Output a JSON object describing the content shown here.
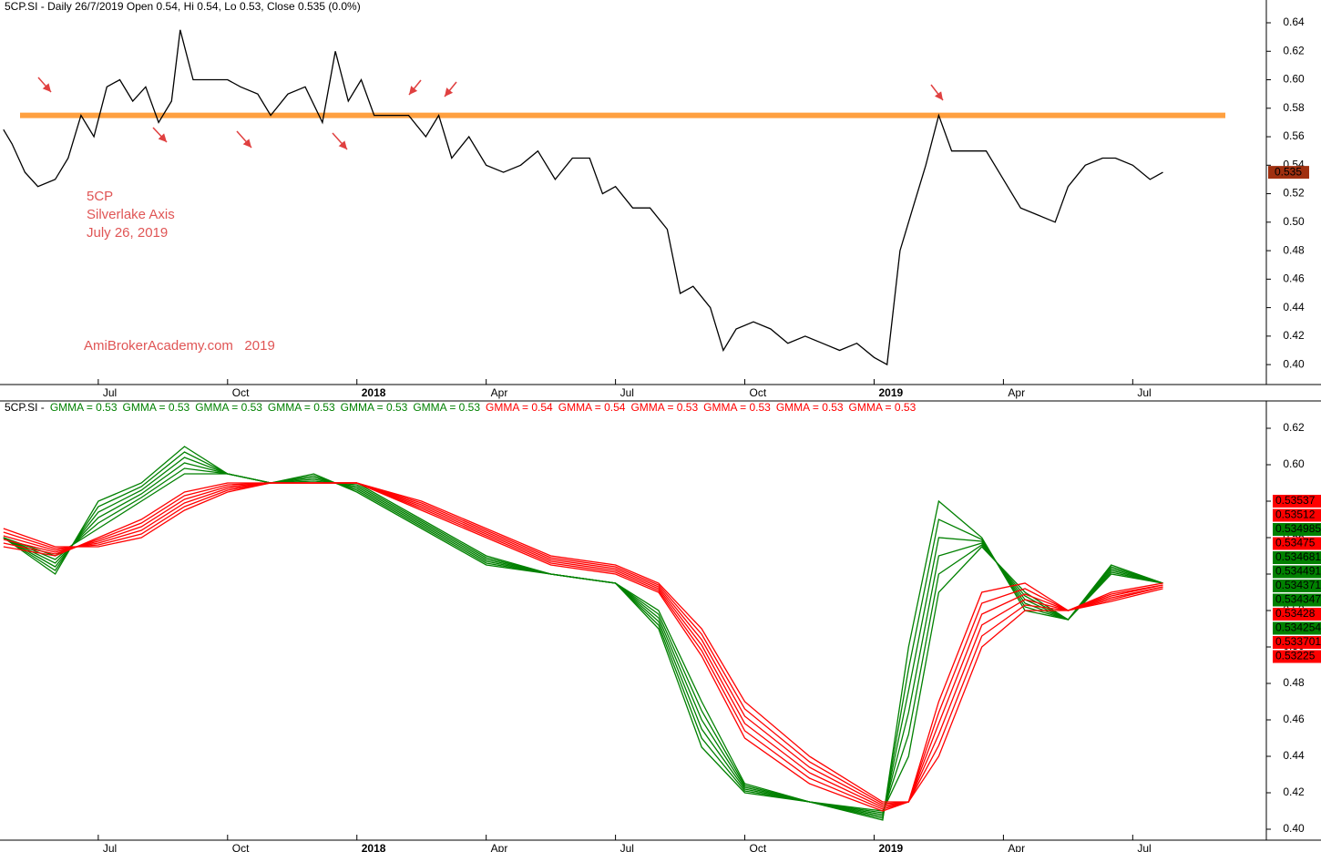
{
  "chart_data": [
    {
      "type": "line",
      "title": "5CP.SI - Daily 26/7/2019 Open 0.54, Hi 0.54, Lo 0.53, Close 0.535 (0.0%)",
      "annotations": [
        "5CP",
        "Silverlake Axis",
        "July 26, 2019",
        "AmiBrokerAcademy.com   2019"
      ],
      "x": [
        3.8,
        4.0,
        4.3,
        4.6,
        5.0,
        5.3,
        5.6,
        5.9,
        6.2,
        6.5,
        6.8,
        7.1,
        7.4,
        7.7,
        7.9,
        8.2,
        8.6,
        9.0,
        9.3,
        9.7,
        10.0,
        10.4,
        10.8,
        11.2,
        11.5,
        11.8,
        12.1,
        12.4,
        12.8,
        13.2,
        13.6,
        13.9,
        14.2,
        14.6,
        15.0,
        15.4,
        15.8,
        16.2,
        16.6,
        17.0,
        17.4,
        17.7,
        18.0,
        18.4,
        18.8,
        19.2,
        19.5,
        19.8,
        20.2,
        20.5,
        20.8,
        21.2,
        21.6,
        22.0,
        22.4,
        22.8,
        23.2,
        23.6,
        24.0,
        24.3,
        24.6,
        24.9,
        25.2,
        25.5,
        25.8,
        26.2,
        26.6,
        27.0,
        27.4,
        27.8,
        28.2,
        28.5,
        28.9,
        29.3,
        29.6,
        30.0,
        30.4,
        30.7
      ],
      "values": [
        0.565,
        0.555,
        0.535,
        0.525,
        0.53,
        0.545,
        0.575,
        0.56,
        0.595,
        0.6,
        0.585,
        0.595,
        0.57,
        0.585,
        0.635,
        0.6,
        0.6,
        0.6,
        0.595,
        0.59,
        0.575,
        0.59,
        0.595,
        0.57,
        0.62,
        0.585,
        0.6,
        0.575,
        0.575,
        0.575,
        0.56,
        0.575,
        0.545,
        0.56,
        0.54,
        0.535,
        0.54,
        0.55,
        0.53,
        0.545,
        0.545,
        0.52,
        0.525,
        0.51,
        0.51,
        0.495,
        0.45,
        0.455,
        0.44,
        0.41,
        0.425,
        0.43,
        0.425,
        0.415,
        0.42,
        0.415,
        0.41,
        0.415,
        0.405,
        0.4,
        0.48,
        0.51,
        0.54,
        0.575,
        0.55,
        0.55,
        0.55,
        0.53,
        0.51,
        0.505,
        0.5,
        0.525,
        0.54,
        0.545,
        0.545,
        0.54,
        0.53,
        0.535
      ],
      "color": "#000000",
      "resistance": {
        "value": 0.575,
        "color": "#ffa040"
      },
      "last_label": "0.535",
      "last_label_color": "#a03010",
      "xlim": [
        3.72,
        33.1
      ],
      "xticks": [
        {
          "value": 6,
          "label": "Jul"
        },
        {
          "value": 9,
          "label": "Oct"
        },
        {
          "value": 12,
          "label": "2018"
        },
        {
          "value": 15,
          "label": "Apr"
        },
        {
          "value": 18,
          "label": "Jul"
        },
        {
          "value": 21,
          "label": "Oct"
        },
        {
          "value": 24,
          "label": "2019"
        },
        {
          "value": 27,
          "label": "Apr"
        },
        {
          "value": 30,
          "label": "Jul"
        }
      ],
      "ylim": [
        0.386,
        0.656
      ],
      "yticks": [
        {
          "value": 0.4,
          "label": "0.40"
        },
        0.42,
        0.44,
        0.46,
        0.48,
        {
          "value": 0.5,
          "label": "0.50"
        },
        0.52,
        0.54,
        0.56,
        0.58,
        {
          "value": 0.6,
          "label": "0.60"
        },
        0.62,
        0.64
      ]
    },
    {
      "type": "line",
      "title": "5CP.SI -",
      "x": [
        3.8,
        5,
        6,
        7,
        8,
        9,
        10,
        11,
        12,
        13.5,
        15,
        16.5,
        18,
        19,
        20,
        21,
        22.5,
        24.2,
        24.8,
        25.5,
        26.5,
        27.5,
        28.5,
        29.5,
        30.7
      ],
      "series": [
        {
          "name": "GMMA = 0.53",
          "color": "#008000",
          "values": [
            0.56,
            0.54,
            0.58,
            0.59,
            0.61,
            0.595,
            0.59,
            0.595,
            0.585,
            0.565,
            0.545,
            0.54,
            0.535,
            0.51,
            0.445,
            0.42,
            0.415,
            0.405,
            0.5,
            0.58,
            0.56,
            0.52,
            0.515,
            0.545,
            0.535
          ]
        },
        {
          "name": "GMMA = 0.53",
          "color": "#008000",
          "values": [
            0.56,
            0.542,
            0.577,
            0.588,
            0.607,
            0.595,
            0.59,
            0.594,
            0.586,
            0.566,
            0.546,
            0.54,
            0.535,
            0.512,
            0.45,
            0.421,
            0.415,
            0.406,
            0.488,
            0.57,
            0.559,
            0.522,
            0.515,
            0.544,
            0.535
          ]
        },
        {
          "name": "GMMA = 0.53",
          "color": "#008000",
          "values": [
            0.56,
            0.544,
            0.574,
            0.586,
            0.604,
            0.595,
            0.59,
            0.593,
            0.587,
            0.567,
            0.547,
            0.54,
            0.535,
            0.514,
            0.455,
            0.422,
            0.415,
            0.407,
            0.476,
            0.56,
            0.558,
            0.524,
            0.515,
            0.543,
            0.535
          ]
        },
        {
          "name": "GMMA = 0.53",
          "color": "#008000",
          "values": [
            0.56,
            0.546,
            0.571,
            0.584,
            0.601,
            0.595,
            0.59,
            0.592,
            0.588,
            0.568,
            0.548,
            0.54,
            0.535,
            0.516,
            0.46,
            0.423,
            0.415,
            0.408,
            0.464,
            0.55,
            0.557,
            0.526,
            0.515,
            0.542,
            0.535
          ]
        },
        {
          "name": "GMMA = 0.53",
          "color": "#008000",
          "values": [
            0.56,
            0.548,
            0.568,
            0.582,
            0.598,
            0.595,
            0.59,
            0.591,
            0.589,
            0.569,
            0.549,
            0.54,
            0.535,
            0.518,
            0.465,
            0.424,
            0.415,
            0.409,
            0.452,
            0.54,
            0.556,
            0.528,
            0.515,
            0.541,
            0.535
          ]
        },
        {
          "name": "GMMA = 0.53",
          "color": "#008000",
          "values": [
            0.56,
            0.55,
            0.565,
            0.58,
            0.595,
            0.595,
            0.59,
            0.59,
            0.59,
            0.57,
            0.55,
            0.54,
            0.535,
            0.52,
            0.47,
            0.425,
            0.415,
            0.41,
            0.44,
            0.53,
            0.555,
            0.53,
            0.515,
            0.54,
            0.535
          ]
        },
        {
          "name": "GMMA = 0.54",
          "color": "#ff0000",
          "values": [
            0.555,
            0.55,
            0.56,
            0.57,
            0.585,
            0.59,
            0.59,
            0.59,
            0.59,
            0.575,
            0.56,
            0.545,
            0.54,
            0.53,
            0.495,
            0.45,
            0.425,
            0.41,
            0.415,
            0.47,
            0.53,
            0.535,
            0.52,
            0.53,
            0.535
          ]
        },
        {
          "name": "GMMA = 0.54",
          "color": "#ff0000",
          "values": [
            0.557,
            0.551,
            0.559,
            0.568,
            0.583,
            0.589,
            0.59,
            0.59,
            0.59,
            0.576,
            0.561,
            0.546,
            0.541,
            0.531,
            0.498,
            0.454,
            0.428,
            0.411,
            0.415,
            0.464,
            0.524,
            0.532,
            0.52,
            0.529,
            0.534
          ]
        },
        {
          "name": "GMMA = 0.53",
          "color": "#ff0000",
          "values": [
            0.559,
            0.552,
            0.558,
            0.566,
            0.581,
            0.588,
            0.59,
            0.59,
            0.59,
            0.577,
            0.562,
            0.547,
            0.542,
            0.532,
            0.501,
            0.458,
            0.431,
            0.412,
            0.415,
            0.458,
            0.518,
            0.529,
            0.52,
            0.528,
            0.534
          ]
        },
        {
          "name": "GMMA = 0.53",
          "color": "#ff0000",
          "values": [
            0.561,
            0.553,
            0.557,
            0.564,
            0.579,
            0.587,
            0.59,
            0.59,
            0.59,
            0.578,
            0.563,
            0.548,
            0.543,
            0.533,
            0.504,
            0.462,
            0.434,
            0.413,
            0.415,
            0.452,
            0.512,
            0.526,
            0.52,
            0.527,
            0.533
          ]
        },
        {
          "name": "GMMA = 0.53",
          "color": "#ff0000",
          "values": [
            0.563,
            0.554,
            0.556,
            0.562,
            0.577,
            0.586,
            0.59,
            0.59,
            0.59,
            0.579,
            0.564,
            0.549,
            0.544,
            0.534,
            0.507,
            0.466,
            0.437,
            0.414,
            0.415,
            0.446,
            0.506,
            0.523,
            0.52,
            0.526,
            0.533
          ]
        },
        {
          "name": "GMMA = 0.53",
          "color": "#ff0000",
          "values": [
            0.565,
            0.555,
            0.555,
            0.56,
            0.575,
            0.585,
            0.59,
            0.59,
            0.59,
            0.58,
            0.565,
            0.55,
            0.545,
            0.535,
            0.51,
            0.47,
            0.44,
            0.415,
            0.415,
            0.44,
            0.5,
            0.52,
            0.52,
            0.525,
            0.532
          ]
        }
      ],
      "value_tags": [
        {
          "label": "0.53537",
          "color": "#ff0000"
        },
        {
          "label": "0.53512",
          "color": "#ff0000"
        },
        {
          "label": "0.534985",
          "color": "#008000"
        },
        {
          "label": "0.53475",
          "color": "#ff0000"
        },
        {
          "label": "0.534681",
          "color": "#008000"
        },
        {
          "label": "0.534491",
          "color": "#008000"
        },
        {
          "label": "0.534371",
          "color": "#008000"
        },
        {
          "label": "0.534347",
          "color": "#008000"
        },
        {
          "label": "0.53428",
          "color": "#ff0000"
        },
        {
          "label": "0.534254",
          "color": "#008000"
        },
        {
          "label": "0.533701",
          "color": "#ff0000"
        },
        {
          "label": "0.53225",
          "color": "#ff0000"
        }
      ],
      "xlim": [
        3.72,
        33.1
      ],
      "xticks": [
        {
          "value": 6,
          "label": "Jul"
        },
        {
          "value": 9,
          "label": "Oct"
        },
        {
          "value": 12,
          "label": "2018"
        },
        {
          "value": 15,
          "label": "Apr"
        },
        {
          "value": 18,
          "label": "Jul"
        },
        {
          "value": 21,
          "label": "Oct"
        },
        {
          "value": 24,
          "label": "2019"
        },
        {
          "value": 27,
          "label": "Apr"
        },
        {
          "value": 30,
          "label": "Jul"
        }
      ],
      "ylim": [
        0.394,
        0.635
      ],
      "yticks": [
        {
          "value": 0.4,
          "label": "0.40"
        },
        0.42,
        0.44,
        0.46,
        0.48,
        {
          "value": 0.5,
          "label": "0.50"
        },
        0.52,
        0.54,
        0.56,
        0.58,
        {
          "value": 0.6,
          "label": "0.60"
        },
        0.62
      ]
    }
  ]
}
